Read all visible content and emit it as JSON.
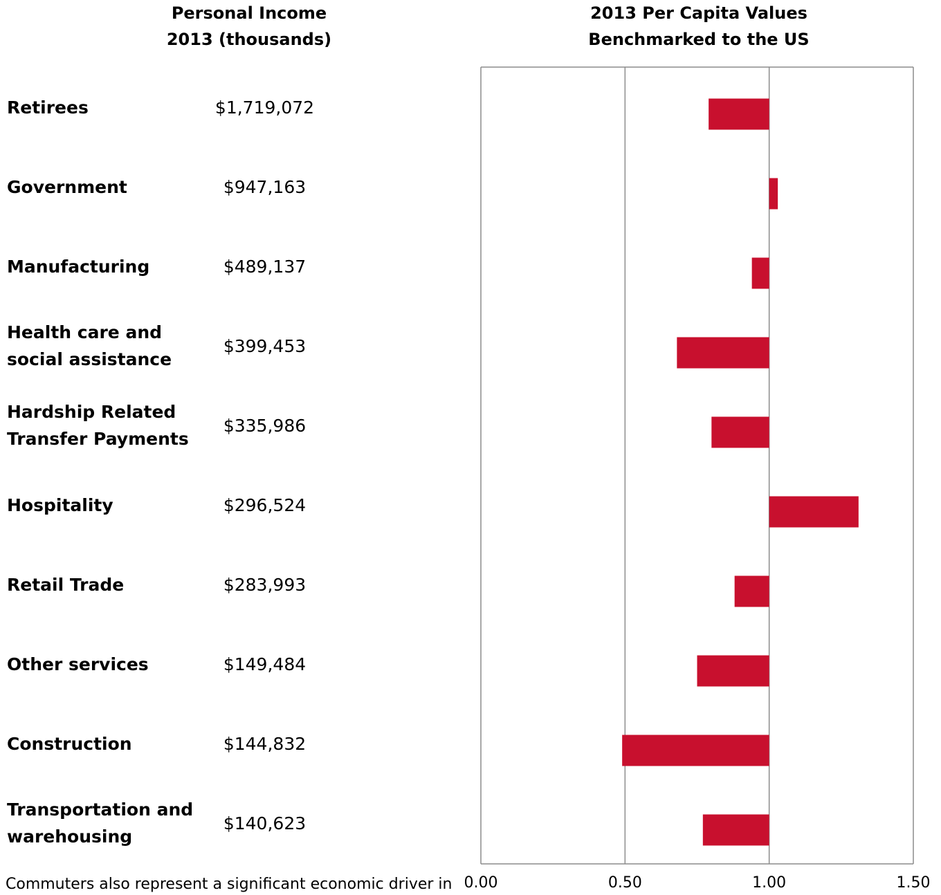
{
  "header": {
    "left_title": [
      "Personal Income",
      "2013 (thousands)"
    ],
    "right_title": [
      "2013 Per Capita Values",
      "Benchmarked to the US"
    ]
  },
  "rows": [
    {
      "label": [
        "Retirees"
      ],
      "income": "$1,719,072"
    },
    {
      "label": [
        "Government"
      ],
      "income": "$947,163"
    },
    {
      "label": [
        "Manufacturing"
      ],
      "income": "$489,137"
    },
    {
      "label": [
        "Health care and",
        "social assistance"
      ],
      "income": "$399,453"
    },
    {
      "label": [
        "Hardship Related",
        "Transfer Payments"
      ],
      "income": "$335,986"
    },
    {
      "label": [
        "Hospitality"
      ],
      "income": "$296,524"
    },
    {
      "label": [
        "Retail Trade"
      ],
      "income": "$283,993"
    },
    {
      "label": [
        "Other services"
      ],
      "income": "$149,484"
    },
    {
      "label": [
        "Construction"
      ],
      "income": "$144,832"
    },
    {
      "label": [
        "Transportation and",
        "warehousing"
      ],
      "income": "$140,623"
    }
  ],
  "footnote": "Commuters also represent a significant economic driver in",
  "chart_data": {
    "type": "bar",
    "orientation": "horizontal",
    "baseline": 1.0,
    "categories": [
      "Retirees",
      "Government",
      "Manufacturing",
      "Health care and social assistance",
      "Hardship Related Transfer Payments",
      "Hospitality",
      "Retail Trade",
      "Other services",
      "Construction",
      "Transportation and warehousing"
    ],
    "values": [
      0.79,
      1.03,
      0.94,
      0.68,
      0.8,
      1.31,
      0.88,
      0.75,
      0.49,
      0.77
    ],
    "xlim": [
      0,
      1.5
    ],
    "xticks": [
      "0.00",
      "0.50",
      "1.00",
      "1.50"
    ],
    "grid": true,
    "bar_color": "#c8102e",
    "grid_color": "#8c8c8c"
  }
}
